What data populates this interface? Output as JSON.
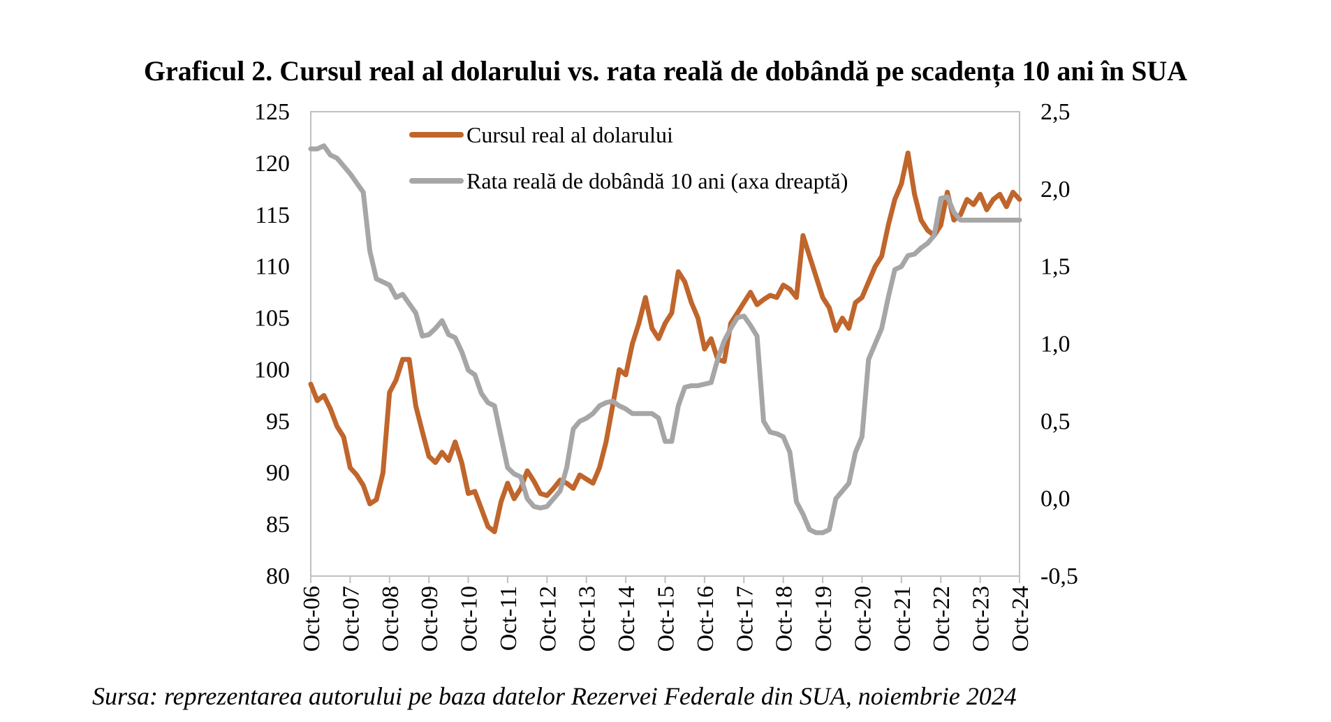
{
  "title": "Graficul 2. Cursul real al dolarului vs. rata reală de dobândă pe scadența 10 ani în SUA",
  "source": "Sursa: reprezentarea autorului pe baza datelor Rezervei Federale din SUA, noiembrie 2024",
  "chart_data": {
    "type": "line",
    "grid": false,
    "legend_position": "top-center",
    "x_tick_labels": [
      "Oct-06",
      "Oct-07",
      "Oct-08",
      "Oct-09",
      "Oct-10",
      "Oct-11",
      "Oct-12",
      "Oct-13",
      "Oct-14",
      "Oct-15",
      "Oct-16",
      "Oct-17",
      "Oct-18",
      "Oct-19",
      "Oct-20",
      "Oct-21",
      "Oct-22",
      "Oct-23",
      "Oct-24"
    ],
    "x_range": [
      "2006-10",
      "2024-10"
    ],
    "y_left": {
      "min": 80,
      "max": 125,
      "step": 5,
      "tick_labels": [
        "80",
        "85",
        "90",
        "95",
        "100",
        "105",
        "110",
        "115",
        "120",
        "125"
      ]
    },
    "y_right": {
      "min": -0.5,
      "max": 2.5,
      "step": 0.5,
      "tick_labels": [
        "-0,5",
        "0,0",
        "0,5",
        "1,0",
        "1,5",
        "2,0",
        "2,5"
      ]
    },
    "series": [
      {
        "name": "Cursul real al dolarului",
        "axis": "left",
        "color": "#C0652B",
        "points": [
          [
            "2006-10",
            98.6
          ],
          [
            "2006-12",
            97.0
          ],
          [
            "2007-02",
            97.5
          ],
          [
            "2007-04",
            96.2
          ],
          [
            "2007-06",
            94.5
          ],
          [
            "2007-08",
            93.5
          ],
          [
            "2007-10",
            90.5
          ],
          [
            "2007-12",
            89.8
          ],
          [
            "2008-02",
            88.8
          ],
          [
            "2008-04",
            87.0
          ],
          [
            "2008-06",
            87.4
          ],
          [
            "2008-08",
            90.0
          ],
          [
            "2008-10",
            97.8
          ],
          [
            "2008-12",
            99.0
          ],
          [
            "2009-02",
            101.0
          ],
          [
            "2009-04",
            101.0
          ],
          [
            "2009-06",
            96.5
          ],
          [
            "2009-08",
            94.0
          ],
          [
            "2009-10",
            91.6
          ],
          [
            "2009-12",
            91.0
          ],
          [
            "2010-02",
            92.0
          ],
          [
            "2010-04",
            91.2
          ],
          [
            "2010-06",
            93.0
          ],
          [
            "2010-08",
            91.0
          ],
          [
            "2010-10",
            88.0
          ],
          [
            "2010-12",
            88.2
          ],
          [
            "2011-02",
            86.5
          ],
          [
            "2011-04",
            84.8
          ],
          [
            "2011-06",
            84.3
          ],
          [
            "2011-08",
            87.2
          ],
          [
            "2011-10",
            89.0
          ],
          [
            "2011-12",
            87.5
          ],
          [
            "2012-02",
            88.5
          ],
          [
            "2012-04",
            90.2
          ],
          [
            "2012-06",
            89.2
          ],
          [
            "2012-08",
            88.0
          ],
          [
            "2012-10",
            87.8
          ],
          [
            "2012-12",
            88.5
          ],
          [
            "2013-02",
            89.3
          ],
          [
            "2013-04",
            89.0
          ],
          [
            "2013-06",
            88.5
          ],
          [
            "2013-08",
            89.8
          ],
          [
            "2013-10",
            89.4
          ],
          [
            "2013-12",
            89.0
          ],
          [
            "2014-02",
            90.5
          ],
          [
            "2014-04",
            93.0
          ],
          [
            "2014-06",
            96.5
          ],
          [
            "2014-08",
            100.0
          ],
          [
            "2014-10",
            99.5
          ],
          [
            "2014-12",
            102.5
          ],
          [
            "2015-02",
            104.5
          ],
          [
            "2015-04",
            107.0
          ],
          [
            "2015-06",
            104.0
          ],
          [
            "2015-08",
            103.0
          ],
          [
            "2015-10",
            104.5
          ],
          [
            "2015-12",
            105.5
          ],
          [
            "2016-02",
            109.5
          ],
          [
            "2016-04",
            108.5
          ],
          [
            "2016-06",
            106.5
          ],
          [
            "2016-08",
            105.0
          ],
          [
            "2016-10",
            102.0
          ],
          [
            "2016-12",
            103.0
          ],
          [
            "2017-02",
            101.0
          ],
          [
            "2017-04",
            100.8
          ],
          [
            "2017-06",
            104.5
          ],
          [
            "2017-08",
            105.5
          ],
          [
            "2017-10",
            106.5
          ],
          [
            "2017-12",
            107.5
          ],
          [
            "2018-02",
            106.3
          ],
          [
            "2018-04",
            106.8
          ],
          [
            "2018-06",
            107.2
          ],
          [
            "2018-08",
            107.0
          ],
          [
            "2018-10",
            108.2
          ],
          [
            "2018-12",
            107.8
          ],
          [
            "2019-02",
            107.0
          ],
          [
            "2019-04",
            113.0
          ],
          [
            "2019-06",
            111.0
          ],
          [
            "2019-08",
            109.0
          ],
          [
            "2019-10",
            107.0
          ],
          [
            "2019-12",
            106.0
          ],
          [
            "2020-02",
            103.8
          ],
          [
            "2020-04",
            105.0
          ],
          [
            "2020-06",
            104.0
          ],
          [
            "2020-08",
            106.5
          ],
          [
            "2020-10",
            107.0
          ],
          [
            "2020-12",
            108.5
          ],
          [
            "2021-02",
            110.0
          ],
          [
            "2021-04",
            111.0
          ],
          [
            "2021-06",
            114.0
          ],
          [
            "2021-08",
            116.5
          ],
          [
            "2021-10",
            118.0
          ],
          [
            "2021-12",
            121.0
          ],
          [
            "2022-02",
            117.0
          ],
          [
            "2022-04",
            114.5
          ],
          [
            "2022-06",
            113.5
          ],
          [
            "2022-08",
            113.0
          ],
          [
            "2022-10",
            114.0
          ],
          [
            "2022-12",
            117.2
          ],
          [
            "2023-02",
            114.5
          ],
          [
            "2023-04",
            115.0
          ],
          [
            "2023-06",
            116.5
          ],
          [
            "2023-08",
            116.0
          ],
          [
            "2023-10",
            117.0
          ],
          [
            "2023-12",
            115.5
          ],
          [
            "2024-02",
            116.5
          ],
          [
            "2024-04",
            117.0
          ],
          [
            "2024-06",
            115.8
          ],
          [
            "2024-08",
            117.2
          ],
          [
            "2024-10",
            116.5
          ]
        ]
      },
      {
        "name": "Rata reală de dobândă 10 ani (axa dreaptă)",
        "axis": "right",
        "color": "#A6A6A6",
        "points": [
          [
            "2006-10",
            2.26
          ],
          [
            "2006-12",
            2.26
          ],
          [
            "2007-02",
            2.28
          ],
          [
            "2007-04",
            2.22
          ],
          [
            "2007-06",
            2.2
          ],
          [
            "2007-08",
            2.15
          ],
          [
            "2007-10",
            2.1
          ],
          [
            "2007-12",
            2.04
          ],
          [
            "2008-02",
            1.98
          ],
          [
            "2008-04",
            1.6
          ],
          [
            "2008-06",
            1.42
          ],
          [
            "2008-08",
            1.4
          ],
          [
            "2008-10",
            1.38
          ],
          [
            "2008-12",
            1.3
          ],
          [
            "2009-02",
            1.32
          ],
          [
            "2009-04",
            1.26
          ],
          [
            "2009-06",
            1.2
          ],
          [
            "2009-08",
            1.05
          ],
          [
            "2009-10",
            1.06
          ],
          [
            "2009-12",
            1.1
          ],
          [
            "2010-02",
            1.15
          ],
          [
            "2010-04",
            1.06
          ],
          [
            "2010-06",
            1.04
          ],
          [
            "2010-08",
            0.95
          ],
          [
            "2010-10",
            0.83
          ],
          [
            "2010-12",
            0.8
          ],
          [
            "2011-02",
            0.68
          ],
          [
            "2011-04",
            0.62
          ],
          [
            "2011-06",
            0.6
          ],
          [
            "2011-08",
            0.4
          ],
          [
            "2011-10",
            0.2
          ],
          [
            "2011-12",
            0.16
          ],
          [
            "2012-02",
            0.14
          ],
          [
            "2012-04",
            0.0
          ],
          [
            "2012-06",
            -0.05
          ],
          [
            "2012-08",
            -0.06
          ],
          [
            "2012-10",
            -0.05
          ],
          [
            "2012-12",
            0.0
          ],
          [
            "2013-02",
            0.05
          ],
          [
            "2013-04",
            0.2
          ],
          [
            "2013-06",
            0.45
          ],
          [
            "2013-08",
            0.5
          ],
          [
            "2013-10",
            0.52
          ],
          [
            "2013-12",
            0.55
          ],
          [
            "2014-02",
            0.6
          ],
          [
            "2014-04",
            0.62
          ],
          [
            "2014-06",
            0.63
          ],
          [
            "2014-08",
            0.6
          ],
          [
            "2014-10",
            0.58
          ],
          [
            "2014-12",
            0.55
          ],
          [
            "2015-02",
            0.55
          ],
          [
            "2015-04",
            0.55
          ],
          [
            "2015-06",
            0.55
          ],
          [
            "2015-08",
            0.52
          ],
          [
            "2015-10",
            0.37
          ],
          [
            "2015-12",
            0.37
          ],
          [
            "2016-02",
            0.6
          ],
          [
            "2016-04",
            0.72
          ],
          [
            "2016-06",
            0.73
          ],
          [
            "2016-08",
            0.73
          ],
          [
            "2016-10",
            0.74
          ],
          [
            "2016-12",
            0.75
          ],
          [
            "2017-02",
            0.9
          ],
          [
            "2017-04",
            1.02
          ],
          [
            "2017-06",
            1.1
          ],
          [
            "2017-08",
            1.17
          ],
          [
            "2017-10",
            1.18
          ],
          [
            "2017-12",
            1.12
          ],
          [
            "2018-02",
            1.05
          ],
          [
            "2018-04",
            0.5
          ],
          [
            "2018-06",
            0.43
          ],
          [
            "2018-08",
            0.42
          ],
          [
            "2018-10",
            0.4
          ],
          [
            "2018-12",
            0.3
          ],
          [
            "2019-02",
            -0.02
          ],
          [
            "2019-04",
            -0.1
          ],
          [
            "2019-06",
            -0.2
          ],
          [
            "2019-08",
            -0.22
          ],
          [
            "2019-10",
            -0.22
          ],
          [
            "2019-12",
            -0.2
          ],
          [
            "2020-02",
            0.0
          ],
          [
            "2020-04",
            0.05
          ],
          [
            "2020-06",
            0.1
          ],
          [
            "2020-08",
            0.3
          ],
          [
            "2020-10",
            0.4
          ],
          [
            "2020-12",
            0.9
          ],
          [
            "2021-02",
            1.0
          ],
          [
            "2021-04",
            1.1
          ],
          [
            "2021-06",
            1.3
          ],
          [
            "2021-08",
            1.48
          ],
          [
            "2021-10",
            1.5
          ],
          [
            "2021-12",
            1.57
          ],
          [
            "2022-02",
            1.58
          ],
          [
            "2022-04",
            1.62
          ],
          [
            "2022-06",
            1.65
          ],
          [
            "2022-08",
            1.7
          ],
          [
            "2022-10",
            1.94
          ],
          [
            "2022-12",
            1.95
          ],
          [
            "2023-02",
            1.85
          ],
          [
            "2023-04",
            1.8
          ],
          [
            "2023-06",
            1.8
          ],
          [
            "2023-08",
            1.8
          ],
          [
            "2023-10",
            1.8
          ],
          [
            "2023-12",
            1.8
          ],
          [
            "2024-02",
            1.8
          ],
          [
            "2024-04",
            1.8
          ],
          [
            "2024-06",
            1.8
          ],
          [
            "2024-08",
            1.8
          ],
          [
            "2024-10",
            1.8
          ]
        ]
      }
    ]
  }
}
